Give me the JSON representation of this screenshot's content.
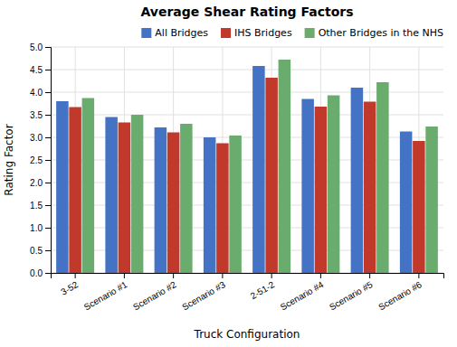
{
  "chart_data": {
    "type": "bar",
    "title": "Average Shear Rating Factors",
    "xlabel": "Truck Configuration",
    "ylabel": "Rating Factor",
    "categories": [
      "3-52",
      "Scenario #1",
      "Scenario #2",
      "Scenario #3",
      "2-51-2",
      "Scenario #4",
      "Scenario #5",
      "Scenario #6"
    ],
    "series": [
      {
        "name": "All Bridges",
        "color": "#4472C4",
        "values": [
          3.8,
          3.45,
          3.22,
          3.0,
          4.58,
          3.85,
          4.1,
          3.13
        ]
      },
      {
        "name": "IHS Bridges",
        "color": "#C0392B",
        "values": [
          3.67,
          3.33,
          3.11,
          2.87,
          4.32,
          3.68,
          3.79,
          2.92
        ]
      },
      {
        "name": "Other Bridges in the NHS",
        "color": "#6AAB6E",
        "values": [
          3.87,
          3.5,
          3.3,
          3.04,
          4.72,
          3.93,
          4.22,
          3.24
        ]
      }
    ],
    "ylim": [
      0.0,
      5.0
    ],
    "yticks": [
      {
        "value": 0,
        "label": "0.0"
      },
      0.5,
      {
        "value": 1,
        "label": "1.0"
      },
      1.5,
      {
        "value": 2,
        "label": "2.0"
      },
      2.5,
      {
        "value": 3,
        "label": "3.0"
      },
      3.5,
      {
        "value": 4,
        "label": "4.0"
      },
      4.5,
      {
        "value": 5,
        "label": "5.0"
      }
    ],
    "grid": true,
    "legend": "upper right"
  }
}
